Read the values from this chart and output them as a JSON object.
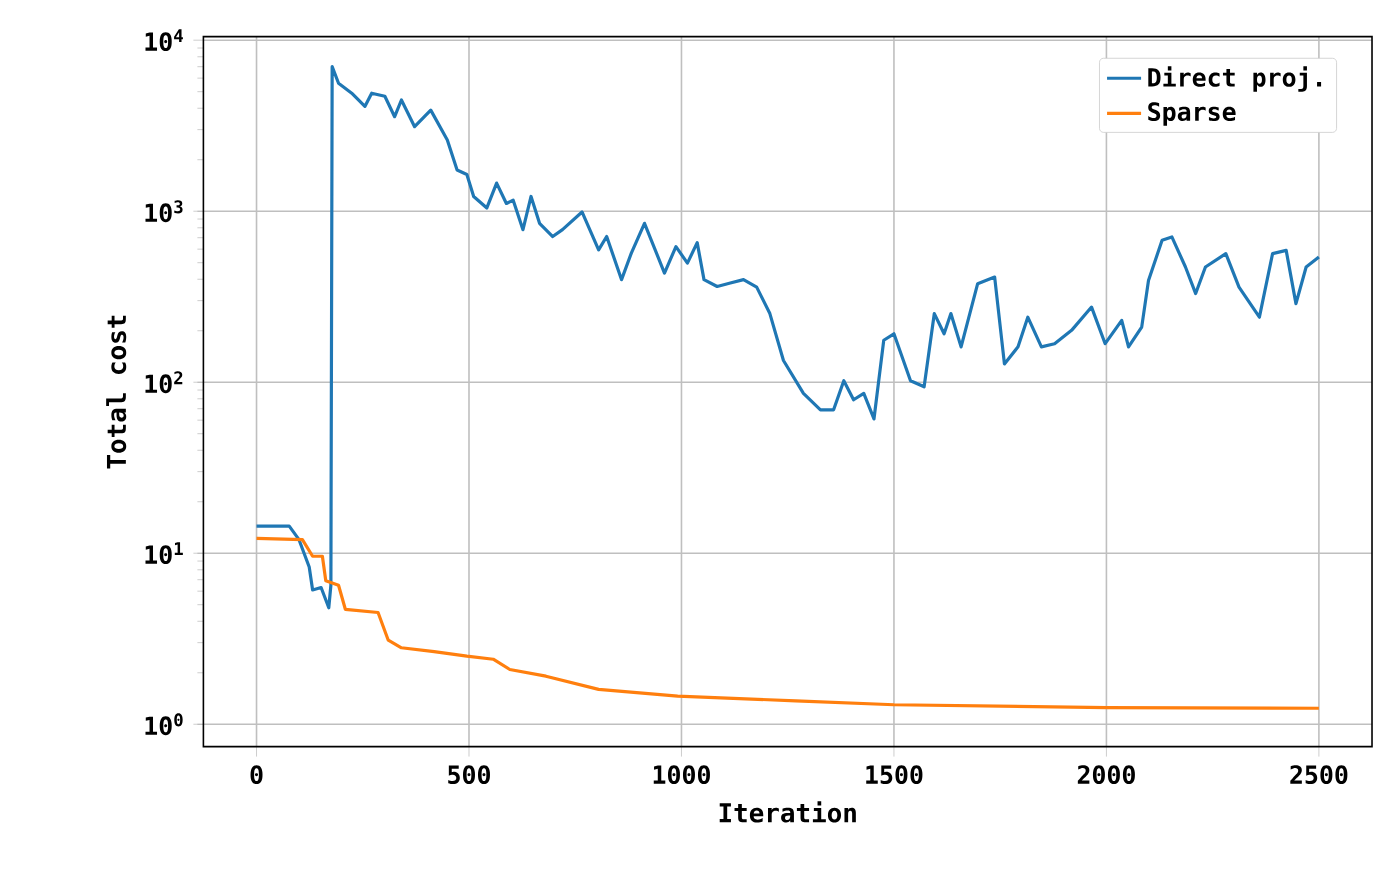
{
  "chart_data": {
    "type": "line",
    "xlabel": "Iteration",
    "ylabel": "Total cost",
    "log": "y",
    "grid": true,
    "legend": "top right",
    "xlim": [
      -125,
      2625
    ],
    "ylim": [
      0.74,
      10500
    ],
    "xticks": [
      0,
      500,
      1000,
      1500,
      2000,
      2500
    ],
    "yticks": [
      {
        "value": 1,
        "label": "10$^{0}$"
      },
      {
        "value": 10,
        "label": "10$^{1}$"
      },
      {
        "value": 100,
        "label": "10$^{2}$"
      },
      {
        "value": 1000,
        "label": "10$^{3}$"
      },
      {
        "value": 10000,
        "label": "10$^{4}$"
      }
    ],
    "series": [
      {
        "name": "Direct proj.",
        "color": "#1f77b4",
        "x": [
          0,
          77,
          100,
          124,
          132,
          152,
          170,
          175,
          178,
          193,
          224,
          255,
          271,
          302,
          325,
          341,
          372,
          410,
          449,
          472,
          495,
          511,
          542,
          565,
          588,
          604,
          627,
          646,
          666,
          697,
          720,
          766,
          805,
          824,
          859,
          882,
          913,
          960,
          987,
          1014,
          1037,
          1053,
          1084,
          1115,
          1146,
          1177,
          1208,
          1240,
          1287,
          1327,
          1358,
          1382,
          1405,
          1429,
          1453,
          1476,
          1500,
          1539,
          1571,
          1595,
          1618,
          1634,
          1658,
          1697,
          1737,
          1760,
          1792,
          1815,
          1847,
          1878,
          1918,
          1965,
          1997,
          2036,
          2052,
          2083,
          2099,
          2131,
          2154,
          2186,
          2210,
          2233,
          2281,
          2312,
          2360,
          2391,
          2423,
          2446,
          2470,
          2500
        ],
        "values": [
          14.4,
          14.4,
          12,
          8.3,
          6.1,
          6.3,
          4.8,
          6.5,
          7000,
          5600,
          4900,
          4100,
          4900,
          4700,
          3570,
          4470,
          3120,
          3900,
          2610,
          1740,
          1640,
          1220,
          1045,
          1460,
          1110,
          1160,
          780,
          1220,
          850,
          711,
          780,
          990,
          594,
          711,
          398,
          569,
          850,
          435,
          621,
          497,
          655,
          398,
          363,
          380,
          398,
          360,
          252,
          134,
          86,
          69,
          69,
          102,
          79,
          86,
          61,
          176,
          192,
          102,
          94,
          252,
          192,
          252,
          161,
          377,
          412,
          128,
          161,
          240,
          161,
          168,
          201,
          275,
          168,
          230,
          161,
          210,
          394,
          676,
          707,
          472,
          330,
          472,
          565,
          360,
          240,
          565,
          590,
          288,
          472,
          540
        ]
      },
      {
        "name": "Sparse",
        "color": "#ff7f0e",
        "x": [
          0,
          108,
          132,
          155,
          163,
          193,
          209,
          286,
          310,
          341,
          418,
          495,
          557,
          596,
          681,
          805,
          991,
          1269,
          1500,
          2000,
          2500
        ],
        "values": [
          12.2,
          12,
          9.6,
          9.6,
          6.9,
          6.5,
          4.7,
          4.5,
          3.1,
          2.8,
          2.66,
          2.5,
          2.4,
          2.09,
          1.91,
          1.6,
          1.46,
          1.37,
          1.3,
          1.25,
          1.24
        ]
      }
    ]
  }
}
